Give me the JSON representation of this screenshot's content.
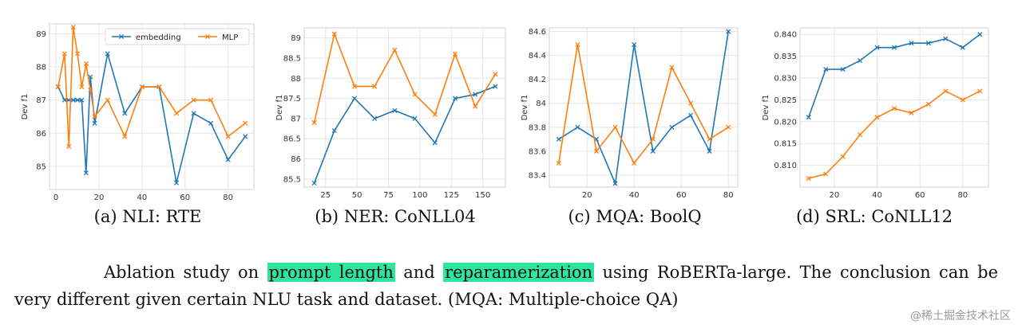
{
  "chart_data": [
    {
      "type": "line",
      "ylabel": "Dev f1",
      "xlim": [
        -3,
        92
      ],
      "ylim": [
        84.3,
        89.3
      ],
      "xticks": [
        0,
        20,
        40,
        60,
        80
      ],
      "yticks": [
        85,
        86,
        87,
        88,
        89
      ],
      "legend": "top-right",
      "series": [
        {
          "name": "embedding",
          "color": "#1f77b4",
          "x": [
            1,
            4,
            6,
            8,
            10,
            12,
            14,
            16,
            18,
            24,
            32,
            40,
            48,
            56,
            64,
            72,
            80,
            88
          ],
          "y": [
            87.4,
            87.0,
            87.0,
            87.0,
            87.0,
            87.0,
            84.8,
            87.7,
            86.3,
            88.4,
            86.6,
            87.4,
            87.4,
            84.5,
            86.6,
            86.3,
            85.2,
            85.9
          ]
        },
        {
          "name": "MLP",
          "color": "#ff7f0e",
          "x": [
            1,
            4,
            6,
            8,
            10,
            12,
            14,
            16,
            18,
            24,
            32,
            40,
            48,
            56,
            64,
            72,
            80,
            88
          ],
          "y": [
            87.4,
            88.4,
            85.6,
            89.2,
            88.4,
            87.4,
            88.1,
            87.3,
            86.5,
            87.0,
            85.9,
            87.4,
            87.4,
            86.6,
            87.0,
            87.0,
            85.9,
            86.3
          ]
        }
      ]
    },
    {
      "type": "line",
      "ylabel": "Dev f1",
      "xlim": [
        8,
        168
      ],
      "ylim": [
        85.3,
        89.25
      ],
      "xticks": [
        25,
        50,
        75,
        100,
        125,
        150
      ],
      "yticks": [
        85.5,
        86.0,
        86.5,
        87.0,
        87.5,
        88.0,
        88.5,
        89.0
      ],
      "series": [
        {
          "color": "#1f77b4",
          "x": [
            16,
            32,
            48,
            64,
            80,
            96,
            112,
            128,
            144,
            160
          ],
          "y": [
            85.4,
            86.7,
            87.5,
            87.0,
            87.2,
            87.0,
            86.4,
            87.5,
            87.6,
            87.8
          ]
        },
        {
          "color": "#ff7f0e",
          "x": [
            16,
            32,
            48,
            64,
            80,
            96,
            112,
            128,
            144,
            160
          ],
          "y": [
            86.9,
            89.1,
            87.8,
            87.8,
            88.7,
            87.6,
            87.1,
            88.6,
            87.3,
            88.1
          ]
        }
      ]
    },
    {
      "type": "line",
      "ylabel": "Dev f1",
      "xlim": [
        4,
        84
      ],
      "ylim": [
        83.3,
        84.63
      ],
      "xticks": [
        20,
        40,
        60,
        80
      ],
      "yticks": [
        83.4,
        83.6,
        83.8,
        84.0,
        84.2,
        84.4,
        84.6
      ],
      "series": [
        {
          "color": "#1f77b4",
          "x": [
            8,
            16,
            24,
            32,
            40,
            48,
            56,
            64,
            72,
            80
          ],
          "y": [
            83.7,
            83.8,
            83.7,
            83.33,
            84.49,
            83.6,
            83.8,
            83.9,
            83.6,
            84.6
          ]
        },
        {
          "color": "#ff7f0e",
          "x": [
            8,
            16,
            24,
            32,
            40,
            48,
            56,
            64,
            72,
            80
          ],
          "y": [
            83.5,
            84.49,
            83.6,
            83.8,
            83.5,
            83.7,
            84.3,
            84.0,
            83.7,
            83.8
          ]
        }
      ]
    },
    {
      "type": "line",
      "ylabel": "Dev f1",
      "xlim": [
        4,
        92
      ],
      "ylim": [
        0.805,
        0.8415
      ],
      "xticks": [
        20,
        40,
        60,
        80
      ],
      "yticks": [
        0.81,
        0.815,
        0.82,
        0.825,
        0.83,
        0.835,
        0.84
      ],
      "ytick_labels": [
        "0.810",
        "0.815",
        "0.820",
        "0.825",
        "0.830",
        "0.835",
        "0.840"
      ],
      "series": [
        {
          "color": "#1f77b4",
          "x": [
            8,
            16,
            24,
            32,
            40,
            48,
            56,
            64,
            72,
            80,
            88
          ],
          "y": [
            0.821,
            0.832,
            0.832,
            0.834,
            0.837,
            0.837,
            0.838,
            0.838,
            0.839,
            0.837,
            0.84
          ]
        },
        {
          "color": "#ff7f0e",
          "x": [
            8,
            16,
            24,
            32,
            40,
            48,
            56,
            64,
            72,
            80,
            88
          ],
          "y": [
            0.807,
            0.808,
            0.812,
            0.817,
            0.821,
            0.823,
            0.822,
            0.824,
            0.827,
            0.825,
            0.827
          ]
        }
      ]
    }
  ],
  "captions": [
    "(a)  NLI: RTE",
    "(b)  NER: CoNLL04",
    "(c)  MQA: BoolQ",
    "(d)  SRL: CoNLL12"
  ],
  "text": {
    "line1_before": "Ablation study on ",
    "hl1": "prompt length",
    "line1_mid": " and ",
    "hl2": "reparamerization",
    "line1_after": " using RoBERTa-large.  The conclusion can be",
    "line2": "very different given certain NLU task and dataset. (MQA: Multiple-choice QA)"
  },
  "watermark": "@稀土掘金技术社区"
}
